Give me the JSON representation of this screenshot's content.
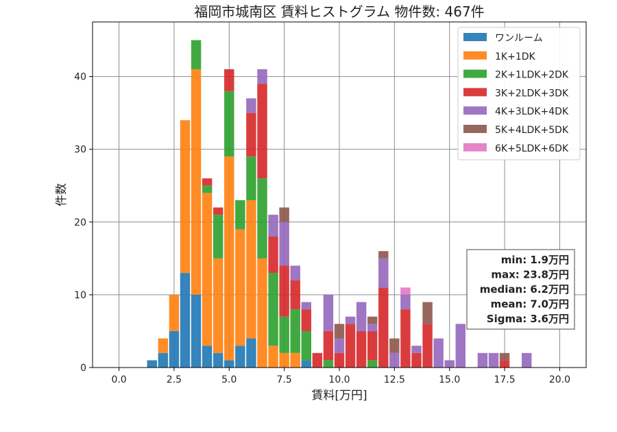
{
  "chart_data": {
    "type": "bar",
    "stacked": true,
    "title": "福岡市城南区 賃料ヒストグラム  物件数: 467件",
    "xlabel": "賃料[万円]",
    "ylabel": "件数",
    "xlim": [
      -1.2,
      21.2
    ],
    "ylim": [
      0,
      47.5
    ],
    "xticks": [
      0,
      2.5,
      5,
      7.5,
      10,
      12.5,
      15,
      17.5,
      20
    ],
    "xtick_labels": [
      "0.0",
      "2.5",
      "5.0",
      "7.5",
      "10.0",
      "12.5",
      "15.0",
      "17.5",
      "20.0"
    ],
    "yticks": [
      0,
      10,
      20,
      30,
      40
    ],
    "ytick_labels": [
      "0",
      "10",
      "20",
      "30",
      "40"
    ],
    "grid": true,
    "legend_position": "top-right",
    "bin_width": 0.5,
    "bin_centers": [
      1.5,
      2.0,
      2.5,
      3.0,
      3.5,
      4.0,
      4.5,
      5.0,
      5.5,
      6.0,
      6.5,
      7.0,
      7.5,
      8.0,
      8.5,
      9.0,
      9.5,
      10.0,
      10.5,
      11.0,
      11.5,
      12.0,
      12.5,
      13.0,
      13.5,
      14.0,
      14.5,
      15.0,
      15.5,
      16.0,
      16.5,
      17.0,
      17.5,
      18.0,
      18.5
    ],
    "series": [
      {
        "name": "ワンルーム",
        "color": "#1f77b4",
        "values": [
          1,
          2,
          5,
          13,
          10,
          3,
          2,
          1,
          3,
          4,
          0,
          0,
          0,
          0,
          1,
          0,
          0,
          0,
          0,
          0,
          0,
          0,
          0,
          0,
          0,
          0,
          0,
          0,
          0,
          0,
          0,
          0,
          0,
          0,
          0
        ]
      },
      {
        "name": "1K+1DK",
        "color": "#ff7f0e",
        "values": [
          0,
          2,
          5,
          21,
          31,
          21,
          13,
          28,
          16,
          19,
          15,
          3,
          2,
          2,
          0,
          0,
          0,
          0,
          0,
          0,
          0,
          0,
          0,
          0,
          0,
          0,
          0,
          0,
          0,
          0,
          0,
          0,
          0,
          0,
          0
        ]
      },
      {
        "name": "2K+1LDK+2DK",
        "color": "#2ca02c",
        "values": [
          0,
          0,
          0,
          0,
          4,
          1,
          6,
          9,
          4,
          6,
          11,
          10,
          5,
          6,
          4,
          0,
          1,
          0,
          0,
          0,
          1,
          0,
          0,
          0,
          0,
          0,
          0,
          0,
          0,
          0,
          0,
          0,
          0,
          0,
          0
        ]
      },
      {
        "name": "3K+2LDK+3DK",
        "color": "#d62728",
        "values": [
          0,
          0,
          0,
          0,
          0,
          1,
          1,
          3,
          0,
          6,
          13,
          5,
          7,
          4,
          3,
          2,
          4,
          2,
          6,
          5,
          4,
          11,
          0,
          8,
          2,
          6,
          0,
          0,
          0,
          0,
          0,
          0,
          1,
          0,
          0
        ]
      },
      {
        "name": "4K+3LDK+4DK",
        "color": "#9467bd",
        "values": [
          0,
          0,
          0,
          0,
          0,
          0,
          0,
          0,
          0,
          2,
          2,
          3,
          6,
          2,
          1,
          0,
          5,
          2,
          1,
          4,
          1,
          4,
          2,
          2,
          1,
          0,
          4,
          1,
          6,
          0,
          2,
          2,
          0,
          0,
          2
        ]
      },
      {
        "name": "5K+4LDK+5DK",
        "color": "#8c564b",
        "values": [
          0,
          0,
          0,
          0,
          0,
          0,
          0,
          0,
          0,
          0,
          0,
          0,
          2,
          0,
          0,
          0,
          0,
          2,
          0,
          0,
          1,
          1,
          2,
          0,
          0,
          3,
          0,
          0,
          0,
          0,
          0,
          0,
          1,
          0,
          0
        ]
      },
      {
        "name": "6K+5LDK+6DK",
        "color": "#e377c2",
        "values": [
          0,
          0,
          0,
          0,
          0,
          0,
          0,
          0,
          0,
          0,
          0,
          0,
          0,
          0,
          0,
          0,
          0,
          0,
          0,
          0,
          0,
          0,
          0,
          1,
          0,
          0,
          0,
          0,
          0,
          0,
          0,
          0,
          0,
          0,
          0
        ]
      }
    ],
    "stats_box": {
      "lines": [
        "min: 1.9万円",
        "max: 23.8万円",
        "median: 6.2万円",
        "mean: 7.0万円",
        "Sigma: 3.6万円"
      ]
    }
  }
}
